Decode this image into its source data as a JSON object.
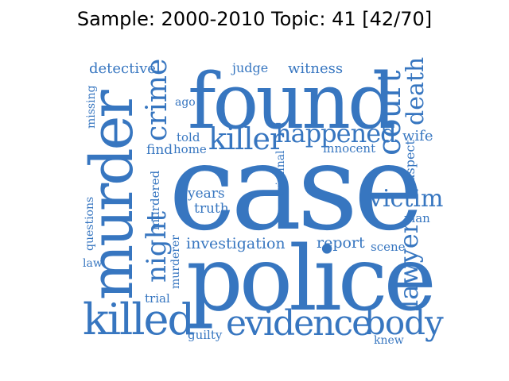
{
  "title": "Sample: 2000-2010 Topic: 41 [42/70]",
  "colors": {
    "word": "#3776c0"
  },
  "words": [
    {
      "text": "case",
      "weight": 1.0,
      "orientation": "horizontal"
    },
    {
      "text": "police",
      "weight": 0.82,
      "orientation": "horizontal"
    },
    {
      "text": "found",
      "weight": 0.78,
      "orientation": "horizontal"
    },
    {
      "text": "murder",
      "weight": 0.7,
      "orientation": "vertical"
    },
    {
      "text": "killed",
      "weight": 0.45,
      "orientation": "horizontal"
    },
    {
      "text": "evidence",
      "weight": 0.4,
      "orientation": "horizontal"
    },
    {
      "text": "court",
      "weight": 0.33,
      "orientation": "vertical"
    },
    {
      "text": "body",
      "weight": 0.3,
      "orientation": "horizontal"
    },
    {
      "text": "killer",
      "weight": 0.28,
      "orientation": "horizontal"
    },
    {
      "text": "happened",
      "weight": 0.27,
      "orientation": "horizontal"
    },
    {
      "text": "crime",
      "weight": 0.27,
      "orientation": "vertical"
    },
    {
      "text": "night",
      "weight": 0.25,
      "orientation": "vertical"
    },
    {
      "text": "lawyer",
      "weight": 0.23,
      "orientation": "vertical"
    },
    {
      "text": "victim",
      "weight": 0.23,
      "orientation": "horizontal"
    },
    {
      "text": "death",
      "weight": 0.22,
      "orientation": "vertical"
    },
    {
      "text": "investigation",
      "weight": 0.15,
      "orientation": "horizontal"
    },
    {
      "text": "years",
      "weight": 0.14,
      "orientation": "horizontal"
    },
    {
      "text": "truth",
      "weight": 0.14,
      "orientation": "horizontal"
    },
    {
      "text": "report",
      "weight": 0.15,
      "orientation": "horizontal"
    },
    {
      "text": "detective",
      "weight": 0.14,
      "orientation": "horizontal"
    },
    {
      "text": "witness",
      "weight": 0.14,
      "orientation": "horizontal"
    },
    {
      "text": "judge",
      "weight": 0.13,
      "orientation": "horizontal"
    },
    {
      "text": "wife",
      "weight": 0.14,
      "orientation": "horizontal"
    },
    {
      "text": "find",
      "weight": 0.13,
      "orientation": "horizontal"
    },
    {
      "text": "innocent",
      "weight": 0.12,
      "orientation": "horizontal"
    },
    {
      "text": "scene",
      "weight": 0.12,
      "orientation": "horizontal"
    },
    {
      "text": "trial",
      "weight": 0.12,
      "orientation": "horizontal"
    },
    {
      "text": "guilty",
      "weight": 0.12,
      "orientation": "horizontal"
    },
    {
      "text": "knew",
      "weight": 0.11,
      "orientation": "horizontal"
    },
    {
      "text": "man",
      "weight": 0.11,
      "orientation": "horizontal"
    },
    {
      "text": "told",
      "weight": 0.11,
      "orientation": "horizontal"
    },
    {
      "text": "home",
      "weight": 0.11,
      "orientation": "horizontal"
    },
    {
      "text": "ago",
      "weight": 0.11,
      "orientation": "horizontal"
    },
    {
      "text": "law",
      "weight": 0.1,
      "orientation": "horizontal"
    },
    {
      "text": "missing",
      "weight": 0.1,
      "orientation": "vertical"
    },
    {
      "text": "questions",
      "weight": 0.1,
      "orientation": "vertical"
    },
    {
      "text": "murdered",
      "weight": 0.11,
      "orientation": "vertical"
    },
    {
      "text": "murderer",
      "weight": 0.1,
      "orientation": "vertical"
    },
    {
      "text": "criminal",
      "weight": 0.1,
      "orientation": "vertical"
    },
    {
      "text": "suspect",
      "weight": 0.11,
      "orientation": "vertical"
    }
  ]
}
